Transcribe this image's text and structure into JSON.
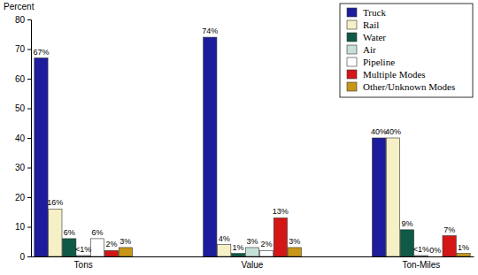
{
  "chart_data": {
    "type": "bar",
    "ylabel": "Percent",
    "categories": [
      "Tons",
      "Value",
      "Ton-Miles"
    ],
    "series": [
      {
        "name": "Truck",
        "color": "#1c1c9c",
        "values": [
          67,
          74,
          40
        ],
        "value_labels": [
          "67%",
          "74%",
          "40%"
        ]
      },
      {
        "name": "Rail",
        "color": "#f5f0c6",
        "values": [
          16,
          4,
          40
        ],
        "value_labels": [
          "16%",
          "4%",
          "40%"
        ]
      },
      {
        "name": "Water",
        "color": "#0e5a46",
        "values": [
          6,
          1,
          9
        ],
        "value_labels": [
          "6%",
          "1%",
          "9%"
        ]
      },
      {
        "name": "Air",
        "color": "#c6e0d6",
        "values": [
          0.3,
          3,
          0.3
        ],
        "value_labels": [
          "<1%",
          "3%",
          "<1%"
        ]
      },
      {
        "name": "Pipeline",
        "color": "#ffffff",
        "values": [
          6,
          2,
          0
        ],
        "value_labels": [
          "6%",
          "2%",
          "0%"
        ]
      },
      {
        "name": "Multiple Modes",
        "color": "#d41616",
        "values": [
          2,
          13,
          7
        ],
        "value_labels": [
          "2%",
          "13%",
          "7%"
        ]
      },
      {
        "name": "Other/Unknown Modes",
        "color": "#c89616",
        "values": [
          3,
          3,
          1
        ],
        "value_labels": [
          "3%",
          "3%",
          "1%"
        ]
      }
    ],
    "ylim": [
      0,
      80
    ],
    "yticks": [
      0,
      10,
      20,
      30,
      40,
      50,
      60,
      70,
      80
    ],
    "data_labels": true,
    "legend": "top-right",
    "grid": false
  }
}
